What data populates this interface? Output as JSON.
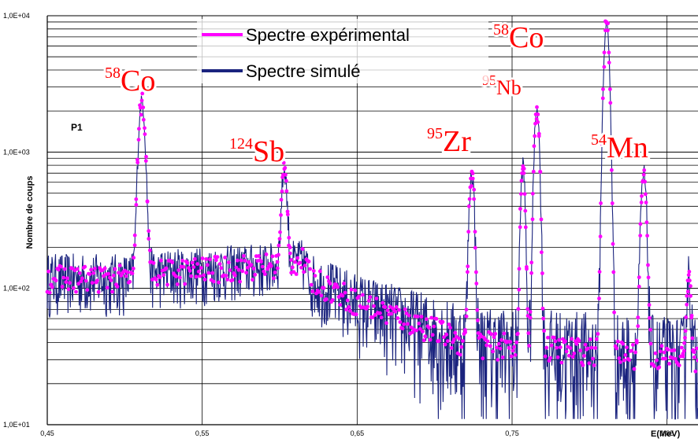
{
  "chart_data": {
    "type": "line",
    "title": "",
    "panel_label": "P1",
    "xlabel": "E(MeV)",
    "ylabel": "Nombre de coups",
    "xlim": [
      0.45,
      0.87
    ],
    "ylim": [
      10,
      10000
    ],
    "yscale": "log",
    "x_ticks": [
      {
        "value": 0.45,
        "label": "0,45"
      },
      {
        "value": 0.55,
        "label": "0,55"
      },
      {
        "value": 0.65,
        "label": "0,65"
      },
      {
        "value": 0.75,
        "label": "0,75"
      },
      {
        "value": 0.85,
        "label": "0,85"
      }
    ],
    "y_ticks": [
      {
        "value": 10,
        "label": "1,0E+01"
      },
      {
        "value": 100,
        "label": "1,0E+02"
      },
      {
        "value": 1000,
        "label": "1,0E+03"
      },
      {
        "value": 10000,
        "label": "1,0E+04"
      }
    ],
    "grid": true,
    "legend_position": "top-center",
    "series": [
      {
        "name": "Spectre expérimental",
        "color": "#ff00ff",
        "style": "markers"
      },
      {
        "name": "Spectre simulé",
        "color": "#1a237e",
        "style": "line"
      }
    ],
    "continuum": [
      {
        "x": 0.45,
        "y": 120
      },
      {
        "x": 0.505,
        "y": 120
      },
      {
        "x": 0.51,
        "y": 80
      },
      {
        "x": 0.515,
        "y": 130
      },
      {
        "x": 0.6,
        "y": 150
      },
      {
        "x": 0.615,
        "y": 160
      },
      {
        "x": 0.62,
        "y": 120
      },
      {
        "x": 0.65,
        "y": 80
      },
      {
        "x": 0.7,
        "y": 50
      },
      {
        "x": 0.72,
        "y": 40
      },
      {
        "x": 0.75,
        "y": 38
      },
      {
        "x": 0.8,
        "y": 35
      },
      {
        "x": 0.87,
        "y": 30
      }
    ],
    "peaks": [
      {
        "isotope_mass": "58",
        "isotope_symbol": "Co",
        "energy": 0.511,
        "height": 2300,
        "width": 0.0018
      },
      {
        "isotope_mass": "124",
        "isotope_symbol": "Sb",
        "energy": 0.603,
        "height": 600,
        "width": 0.0015
      },
      {
        "isotope_mass": "95",
        "isotope_symbol": "Zr",
        "energy": 0.724,
        "height": 680,
        "width": 0.0014
      },
      {
        "isotope_mass": "",
        "isotope_symbol": "",
        "energy": 0.757,
        "height": 750,
        "width": 0.0012
      },
      {
        "isotope_mass": "95",
        "isotope_symbol": "Nb",
        "energy": 0.766,
        "height": 2100,
        "width": 0.0014
      },
      {
        "isotope_mass": "58",
        "isotope_symbol": "Co",
        "energy": 0.811,
        "height": 8800,
        "width": 0.0015
      },
      {
        "isotope_mass": "54",
        "isotope_symbol": "Mn",
        "energy": 0.835,
        "height": 650,
        "width": 0.0015
      },
      {
        "isotope_mass": "",
        "isotope_symbol": "",
        "energy": 0.864,
        "height": 95,
        "width": 0.0012
      }
    ]
  }
}
